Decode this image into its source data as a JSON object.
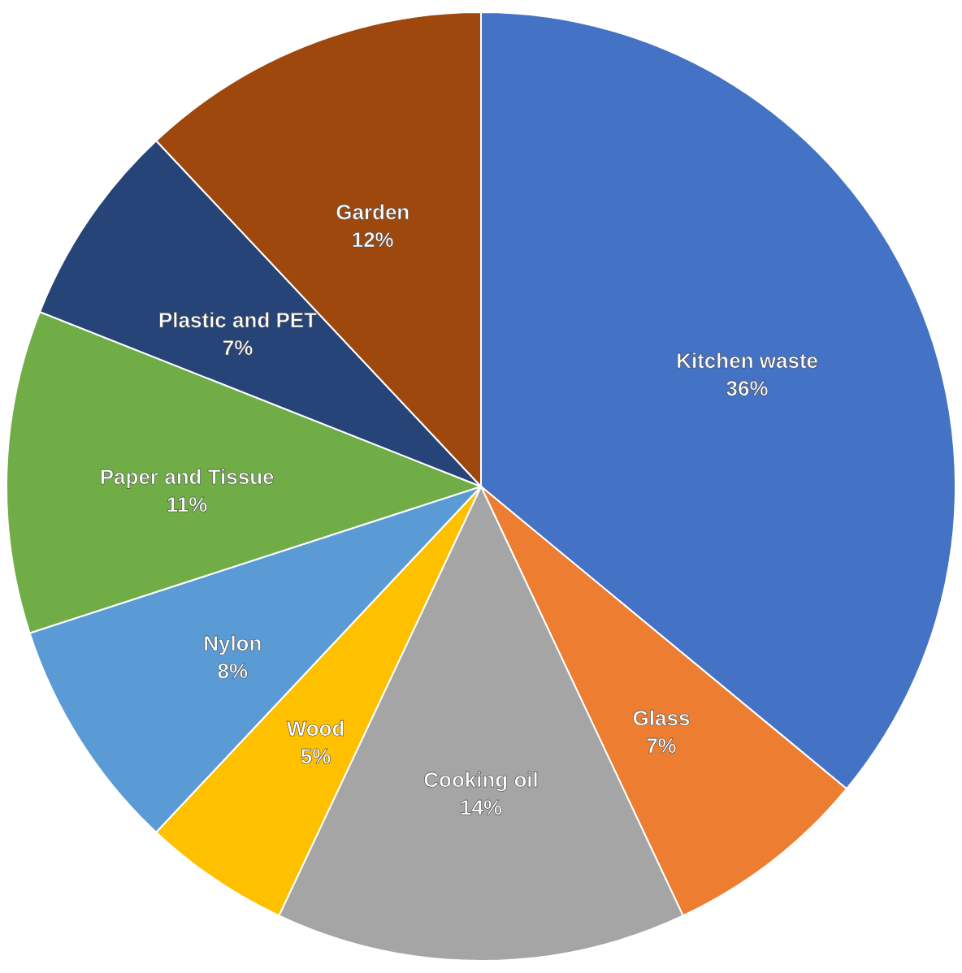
{
  "chart_data": {
    "type": "pie",
    "categories": [
      "Kitchen waste",
      "Glass",
      "Cooking oil",
      "Wood",
      "Nylon",
      "Paper and Tissue",
      "Plastic and PET",
      "Garden"
    ],
    "values": [
      36,
      7,
      14,
      5,
      8,
      11,
      7,
      12
    ],
    "colors": [
      "#4472c4",
      "#ed7d31",
      "#a5a5a5",
      "#ffc000",
      "#5b9bd5",
      "#70ad47",
      "#264478",
      "#9e480e"
    ],
    "value_labels": [
      "36%",
      "7%",
      "14%",
      "5%",
      "8%",
      "11%",
      "7%",
      "12%"
    ]
  }
}
